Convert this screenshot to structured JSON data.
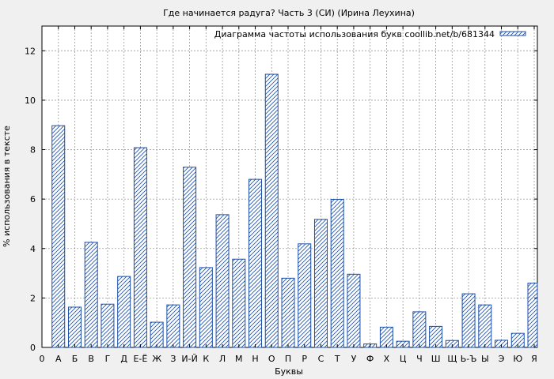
{
  "chart_data": {
    "type": "bar",
    "title": "Где начинается радуга? Часть 3 (СИ) (Ирина Леухина)",
    "xlabel": "Буквы",
    "ylabel": "% использования в тексте",
    "legend_label": "Диаграмма частоты использования букв coollib.net/b/681344",
    "legend_position": "top-right",
    "grid": true,
    "ylim": [
      0,
      13
    ],
    "y_ticks": [
      0,
      2,
      4,
      6,
      8,
      10,
      12
    ],
    "y_tick_labels": [
      "0",
      "2",
      "4",
      "6",
      "8",
      "10",
      "12"
    ],
    "x_first_tick_label": "0",
    "categories": [
      "А",
      "Б",
      "В",
      "Г",
      "Д",
      "Е-Ё",
      "Ж",
      "З",
      "И-Й",
      "К",
      "Л",
      "М",
      "Н",
      "О",
      "П",
      "Р",
      "С",
      "Т",
      "У",
      "Ф",
      "Х",
      "Ц",
      "Ч",
      "Ш",
      "Щ",
      "Ь-Ъ",
      "Ы",
      "Э",
      "Ю",
      "Я"
    ],
    "values": [
      8.97,
      1.63,
      4.25,
      1.75,
      2.87,
      8.08,
      1.02,
      1.72,
      7.29,
      3.23,
      5.37,
      3.57,
      6.8,
      11.05,
      2.8,
      4.19,
      5.18,
      5.99,
      2.96,
      0.14,
      0.82,
      0.25,
      1.44,
      0.85,
      0.28,
      2.17,
      1.72,
      0.29,
      0.57,
      2.6
    ],
    "colors": {
      "bar_stroke": "#1c4fa8",
      "hatch": "#1c4fa8",
      "bar_fill": "#ffffff",
      "grid": "#9a9a9a",
      "background": "#f0f0f0"
    }
  }
}
